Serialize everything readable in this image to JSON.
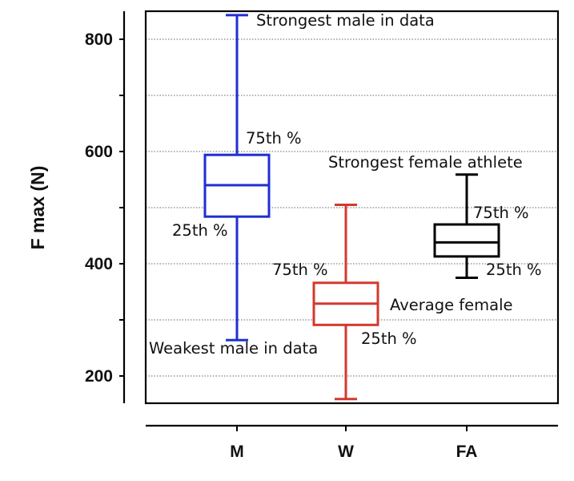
{
  "chart_data": {
    "type": "box",
    "ylabel": "F max (N)",
    "xlabel": "",
    "ylim": [
      150,
      880
    ],
    "yticks": [
      "200",
      "400",
      "600",
      "800"
    ],
    "ytick_values": [
      200,
      400,
      600,
      800
    ],
    "grid": {
      "horizontal": true,
      "style": "dotted",
      "values": [
        200,
        300,
        400,
        500,
        600,
        700,
        800
      ]
    },
    "categories": [
      "M",
      "W",
      "FA"
    ],
    "boxes": [
      {
        "category": "M",
        "color": "#1f2fd0",
        "whisker_high": 843,
        "q3": 594,
        "median": 540,
        "q1": 484,
        "whisker_low": 264
      },
      {
        "category": "W",
        "color": "#d2392f",
        "whisker_high": 505,
        "q3": 366,
        "median": 329,
        "q1": 291,
        "whisker_low": 159
      },
      {
        "category": "FA",
        "color": "#000000",
        "whisker_high": 559,
        "q3": 470,
        "median": 438,
        "q1": 413,
        "whisker_low": 375
      }
    ],
    "annotations": [
      {
        "text": "Strongest male in data",
        "box": "M",
        "refers_to": "max"
      },
      {
        "text": "75th %",
        "box": "M",
        "refers_to": "q3"
      },
      {
        "text": "25th %",
        "box": "M",
        "refers_to": "q1"
      },
      {
        "text": "Weakest male in data",
        "box": "M",
        "refers_to": "min"
      },
      {
        "text": "75th %",
        "box": "W",
        "refers_to": "q3"
      },
      {
        "text": "Average female",
        "box": "W",
        "refers_to": "median"
      },
      {
        "text": "25th %",
        "box": "W",
        "refers_to": "q1"
      },
      {
        "text": "Strongest female athlete",
        "box": "FA",
        "refers_to": "max"
      },
      {
        "text": "75th %",
        "box": "FA",
        "refers_to": "q3"
      },
      {
        "text": "25th %",
        "box": "FA",
        "refers_to": "q1"
      }
    ]
  }
}
